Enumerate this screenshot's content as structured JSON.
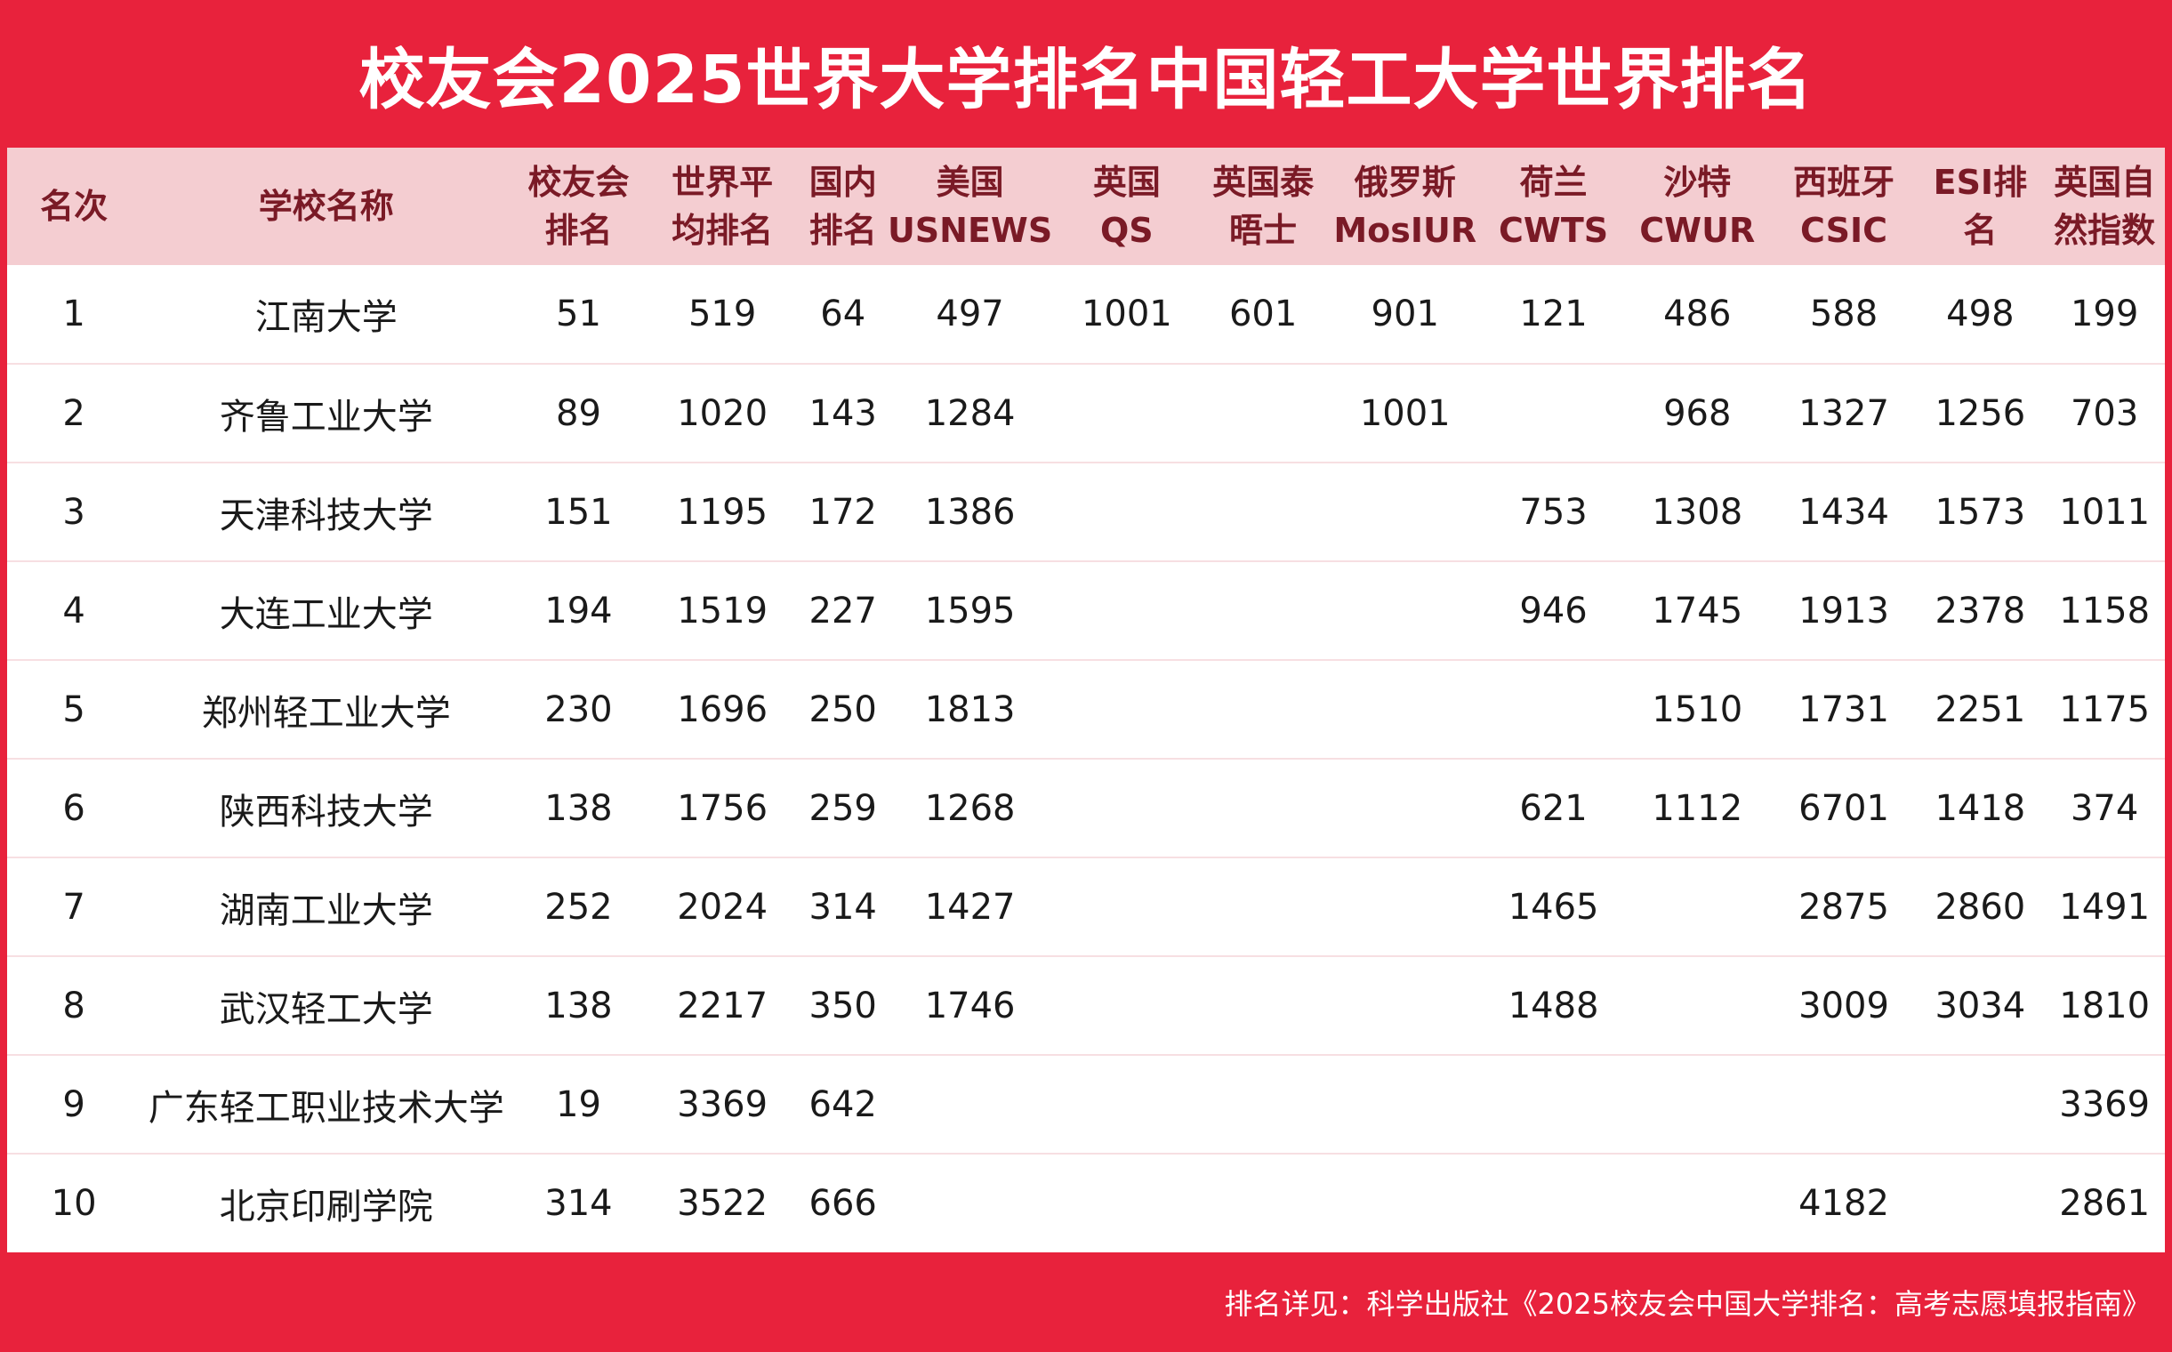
{
  "title": "校友会2025世界大学排名中国轻工大学世界排名",
  "table": {
    "headers": [
      "名次",
      "学校名称",
      "校友会\n排名",
      "世界平\n均排名",
      "国内\n排名",
      "美国\nUSNEWS",
      "英国\nQS",
      "英国泰\n晤士",
      "俄罗斯\nMosIUR",
      "荷兰\nCWTS",
      "沙特\nCWUR",
      "西班牙\nCSIC",
      "ESI排\n名",
      "英国自\n然指数"
    ],
    "rows": [
      [
        "1",
        "江南大学",
        "51",
        "519",
        "64",
        "497",
        "1001",
        "601",
        "901",
        "121",
        "486",
        "588",
        "498",
        "199"
      ],
      [
        "2",
        "齐鲁工业大学",
        "89",
        "1020",
        "143",
        "1284",
        "",
        "",
        "1001",
        "",
        "968",
        "1327",
        "1256",
        "703"
      ],
      [
        "3",
        "天津科技大学",
        "151",
        "1195",
        "172",
        "1386",
        "",
        "",
        "",
        "753",
        "1308",
        "1434",
        "1573",
        "1011"
      ],
      [
        "4",
        "大连工业大学",
        "194",
        "1519",
        "227",
        "1595",
        "",
        "",
        "",
        "946",
        "1745",
        "1913",
        "2378",
        "1158"
      ],
      [
        "5",
        "郑州轻工业大学",
        "230",
        "1696",
        "250",
        "1813",
        "",
        "",
        "",
        "",
        "1510",
        "1731",
        "2251",
        "1175"
      ],
      [
        "6",
        "陕西科技大学",
        "138",
        "1756",
        "259",
        "1268",
        "",
        "",
        "",
        "621",
        "1112",
        "6701",
        "1418",
        "374"
      ],
      [
        "7",
        "湖南工业大学",
        "252",
        "2024",
        "314",
        "1427",
        "",
        "",
        "",
        "1465",
        "",
        "2875",
        "2860",
        "1491"
      ],
      [
        "8",
        "武汉轻工大学",
        "138",
        "2217",
        "350",
        "1746",
        "",
        "",
        "",
        "1488",
        "",
        "3009",
        "3034",
        "1810"
      ],
      [
        "9",
        "广东轻工职业技术大学",
        "19",
        "3369",
        "642",
        "",
        "",
        "",
        "",
        "",
        "",
        "",
        "",
        "3369"
      ],
      [
        "10",
        "北京印刷学院",
        "314",
        "3522",
        "666",
        "",
        "",
        "",
        "",
        "",
        "",
        "4182",
        "",
        "2861"
      ]
    ]
  },
  "footer": "排名详见：科学出版社《2025校友会中国大学排名：高考志愿填报指南》",
  "colors": {
    "accent": "#e8223c",
    "header_bg": "#f4cdd1",
    "header_text": "#7a1a26"
  }
}
